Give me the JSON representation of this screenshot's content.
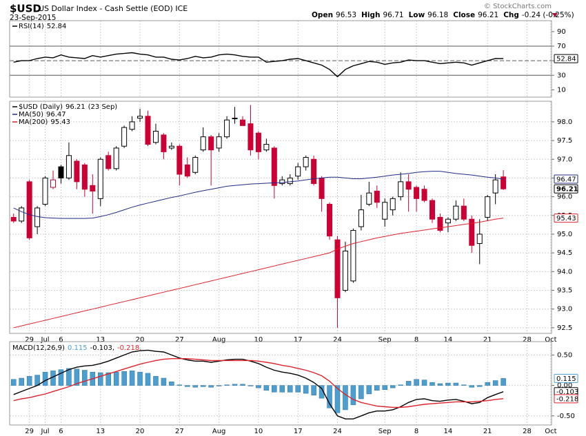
{
  "header": {
    "symbol": "$USD",
    "name": "US Dollar Index - Cash Settle (EOD) ICE",
    "date": "23-Sep-2015",
    "credit": "© StockCharts.com",
    "quote": [
      {
        "label": "Open",
        "value": 96.53
      },
      {
        "label": "High",
        "value": 96.71
      },
      {
        "label": "Low",
        "value": 96.18
      },
      {
        "label": "Close",
        "value": 96.21
      },
      {
        "label": "Chg",
        "value": "-0.24 (-0.25%)"
      }
    ]
  },
  "chart_data": [
    {
      "type": "line",
      "xlim": [
        -0.5,
        68.1
      ],
      "ylim": [
        0,
        105
      ],
      "yticks": [
        10,
        30,
        50,
        70,
        90
      ],
      "levels": [
        30,
        70
      ],
      "midline": 50,
      "grid": false,
      "series": [
        {
          "name": "RSI(14)",
          "color": "#000000",
          "values": [
            48,
            50,
            50,
            53,
            55,
            54,
            58,
            55,
            54,
            53,
            57,
            55,
            57,
            59,
            60,
            61,
            59,
            58,
            55,
            55,
            52,
            51,
            53,
            56,
            54,
            55,
            58,
            59,
            58,
            56,
            55,
            55,
            48,
            49,
            50,
            52,
            53,
            50,
            47,
            44,
            38,
            28,
            38,
            43,
            46,
            49,
            48,
            45,
            47,
            48,
            51,
            50,
            50,
            48,
            46,
            47,
            48,
            47,
            44,
            47,
            50,
            53,
            52.84
          ]
        }
      ]
    },
    {
      "type": "candlestick",
      "xlim": [
        -0.5,
        68.1
      ],
      "ylim": [
        92.35,
        98.55
      ],
      "grid": true,
      "date_label": "(23 Sep)",
      "yticks": [
        92.5,
        {
          "value": 93,
          "label": "93.0"
        },
        93.5,
        {
          "value": 94,
          "label": "94.0"
        },
        94.5,
        {
          "value": 95,
          "label": "95.0"
        },
        95.5,
        {
          "value": 96,
          "label": "96.0"
        },
        96.5,
        {
          "value": 97,
          "label": "97.0"
        },
        97.5,
        {
          "value": 98,
          "label": "98.0"
        }
      ],
      "xticks": [
        {
          "value": 2,
          "label": "29"
        },
        {
          "value": 4,
          "label": "Jul"
        },
        {
          "value": 6,
          "label": "6"
        },
        {
          "value": 11,
          "label": "13"
        },
        {
          "value": 16,
          "label": "20"
        },
        {
          "value": 21,
          "label": "27"
        },
        {
          "value": 26,
          "label": "Aug"
        },
        {
          "value": 31,
          "label": "10"
        },
        {
          "value": 36,
          "label": "17"
        },
        {
          "value": 41,
          "label": "24"
        },
        {
          "value": 47,
          "label": "Sep"
        },
        {
          "value": 51,
          "label": "8"
        },
        {
          "value": 55,
          "label": "14"
        },
        {
          "value": 60,
          "label": "21"
        },
        {
          "value": 65,
          "label": "28"
        },
        {
          "value": 68,
          "label": "Oct"
        }
      ],
      "series": [
        {
          "name": "$USD (Daily)",
          "type": "candlestick",
          "color": "#000000",
          "down_color": "#cc0033",
          "open": [
            95.45,
            95.35,
            96.4,
            95.2,
            95.8,
            96.25,
            96.8,
            96.5,
            96.95,
            96.85,
            96.3,
            95.95,
            97.1,
            96.75,
            97.35,
            97.8,
            98.1,
            98.15,
            97.45,
            97.65,
            97.3,
            97.35,
            96.85,
            96.65,
            97.25,
            97.6,
            97.3,
            97.6,
            98.1,
            98.05,
            97.95,
            97.7,
            97.25,
            97.3,
            96.35,
            96.35,
            96.55,
            96.8,
            97.0,
            96.5,
            95.8,
            94.85,
            93.5,
            93.75,
            95.2,
            95.8,
            96.15,
            95.4,
            95.65,
            96.0,
            96.4,
            96.25,
            96.2,
            95.9,
            95.45,
            95.3,
            95.4,
            95.75,
            95.4,
            94.75,
            95.45,
            96.1,
            96.53
          ],
          "high": [
            95.55,
            95.75,
            96.45,
            95.75,
            96.55,
            96.7,
            96.85,
            97.45,
            97.0,
            96.9,
            96.6,
            97.05,
            97.2,
            97.35,
            97.9,
            98.15,
            98.35,
            98.3,
            97.95,
            97.7,
            97.45,
            97.4,
            97.05,
            97.1,
            97.85,
            97.65,
            97.7,
            98.15,
            98.4,
            98.15,
            98.45,
            97.75,
            97.55,
            97.35,
            96.55,
            96.6,
            96.9,
            97.1,
            97.1,
            96.55,
            95.85,
            94.95,
            94.8,
            95.15,
            96.05,
            96.4,
            96.3,
            95.95,
            96.0,
            96.65,
            96.6,
            96.3,
            96.3,
            95.95,
            95.55,
            95.45,
            95.9,
            95.95,
            95.5,
            95.4,
            96.05,
            96.6,
            96.71
          ],
          "low": [
            95.3,
            95.3,
            94.85,
            95.0,
            95.75,
            96.2,
            96.35,
            96.45,
            96.2,
            96.0,
            95.55,
            95.75,
            96.7,
            96.7,
            97.3,
            97.75,
            98.0,
            97.35,
            97.4,
            97.0,
            97.25,
            96.3,
            96.5,
            96.6,
            97.2,
            96.3,
            97.2,
            97.55,
            97.95,
            97.9,
            97.1,
            97.0,
            97.2,
            95.95,
            96.3,
            96.3,
            96.45,
            96.7,
            96.3,
            95.6,
            94.85,
            92.5,
            93.45,
            93.7,
            95.1,
            95.75,
            95.7,
            95.2,
            95.5,
            95.9,
            95.6,
            95.6,
            95.85,
            95.3,
            95.05,
            95.05,
            95.35,
            95.35,
            94.5,
            94.2,
            95.35,
            95.8,
            96.18
          ],
          "close": [
            95.35,
            95.7,
            94.9,
            95.7,
            96.5,
            96.45,
            96.5,
            97.1,
            96.4,
            96.2,
            96.15,
            97.0,
            96.75,
            97.3,
            97.85,
            98.0,
            98.15,
            97.4,
            97.75,
            97.2,
            97.35,
            96.6,
            96.55,
            97.05,
            97.6,
            97.25,
            97.6,
            98.05,
            98.08,
            97.9,
            97.25,
            97.2,
            97.4,
            96.3,
            96.45,
            96.5,
            96.8,
            97.05,
            96.35,
            95.95,
            94.95,
            93.3,
            94.55,
            95.1,
            95.65,
            96.1,
            95.85,
            95.85,
            95.95,
            96.4,
            96.2,
            95.95,
            95.9,
            95.4,
            95.1,
            95.4,
            95.75,
            95.4,
            94.7,
            95.0,
            96.0,
            96.45,
            96.21
          ]
        },
        {
          "name": "MA(50)",
          "color": "#1f2a86",
          "values": [
            95.7,
            95.6,
            95.52,
            95.47,
            95.44,
            95.43,
            95.42,
            95.42,
            95.42,
            95.42,
            95.43,
            95.47,
            95.52,
            95.58,
            95.65,
            95.72,
            95.78,
            95.83,
            95.88,
            95.93,
            95.98,
            96.02,
            96.07,
            96.12,
            96.16,
            96.2,
            96.24,
            96.28,
            96.3,
            96.32,
            96.34,
            96.35,
            96.36,
            96.37,
            96.38,
            96.4,
            96.42,
            96.45,
            96.48,
            96.5,
            96.52,
            96.52,
            96.5,
            96.48,
            96.48,
            96.5,
            96.52,
            96.55,
            96.58,
            96.6,
            96.62,
            96.65,
            96.67,
            96.68,
            96.68,
            96.65,
            96.62,
            96.6,
            96.58,
            96.55,
            96.52,
            96.5,
            96.47
          ]
        },
        {
          "name": "MA(200)",
          "color": "#e0202a",
          "values": [
            92.5,
            92.55,
            92.6,
            92.65,
            92.7,
            92.75,
            92.8,
            92.85,
            92.9,
            92.95,
            93.0,
            93.05,
            93.1,
            93.15,
            93.2,
            93.25,
            93.3,
            93.35,
            93.4,
            93.45,
            93.5,
            93.55,
            93.6,
            93.65,
            93.7,
            93.75,
            93.8,
            93.85,
            93.9,
            93.95,
            94.0,
            94.05,
            94.1,
            94.15,
            94.2,
            94.25,
            94.3,
            94.35,
            94.4,
            94.45,
            94.5,
            94.6,
            94.68,
            94.75,
            94.8,
            94.85,
            94.9,
            94.94,
            94.98,
            95.02,
            95.05,
            95.08,
            95.11,
            95.14,
            95.17,
            95.2,
            95.23,
            95.26,
            95.29,
            95.32,
            95.36,
            95.4,
            95.43
          ]
        }
      ]
    },
    {
      "type": "line",
      "title": "MACD(12,26,9)",
      "xlim": [
        -0.5,
        68.1
      ],
      "ylim": [
        -0.65,
        0.72
      ],
      "grid": true,
      "yticks": [
        {
          "value": 0.5,
          "label": "0.50"
        },
        {
          "value": 0,
          "label": "0.00"
        },
        {
          "value": -0.5,
          "label": "-0.50"
        }
      ],
      "xticks": [
        {
          "value": 2,
          "label": "29"
        },
        {
          "value": 4,
          "label": "Jul"
        },
        {
          "value": 6,
          "label": "6"
        },
        {
          "value": 11,
          "label": "13"
        },
        {
          "value": 16,
          "label": "20"
        },
        {
          "value": 21,
          "label": "27"
        },
        {
          "value": 26,
          "label": "Aug"
        },
        {
          "value": 31,
          "label": "10"
        },
        {
          "value": 36,
          "label": "17"
        },
        {
          "value": 41,
          "label": "24"
        },
        {
          "value": 47,
          "label": "Sep"
        },
        {
          "value": 51,
          "label": "8"
        },
        {
          "value": 55,
          "label": "14"
        },
        {
          "value": 60,
          "label": "21"
        },
        {
          "value": 65,
          "label": "28"
        },
        {
          "value": 68,
          "label": "Oct"
        }
      ],
      "series": [
        {
          "type": "bar",
          "color": "#4b9fd0",
          "values": [
            0.1,
            0.12,
            0.15,
            0.17,
            0.22,
            0.24,
            0.26,
            0.28,
            0.27,
            0.25,
            0.22,
            0.21,
            0.21,
            0.22,
            0.23,
            0.24,
            0.22,
            0.2,
            0.15,
            0.12,
            0.06,
            0.01,
            -0.02,
            -0.03,
            -0.02,
            -0.03,
            -0.01,
            0.01,
            0.02,
            0.02,
            -0.01,
            -0.04,
            -0.08,
            -0.11,
            -0.11,
            -0.11,
            -0.11,
            -0.13,
            -0.16,
            -0.21,
            -0.37,
            -0.45,
            -0.4,
            -0.32,
            -0.22,
            -0.14,
            -0.08,
            -0.07,
            -0.04,
            0.01,
            0.07,
            0.1,
            0.09,
            0.05,
            0.03,
            0.04,
            0.04,
            0.01,
            -0.03,
            -0.02,
            0.05,
            0.08,
            0.115
          ]
        },
        {
          "legend_label": "-0.103,",
          "color": "#000000",
          "values": [
            -0.15,
            -0.1,
            -0.05,
            0.0,
            0.08,
            0.14,
            0.2,
            0.26,
            0.3,
            0.32,
            0.33,
            0.36,
            0.4,
            0.45,
            0.5,
            0.55,
            0.57,
            0.58,
            0.56,
            0.55,
            0.5,
            0.45,
            0.42,
            0.4,
            0.4,
            0.38,
            0.4,
            0.42,
            0.43,
            0.43,
            0.4,
            0.36,
            0.3,
            0.25,
            0.22,
            0.2,
            0.17,
            0.12,
            0.05,
            -0.05,
            -0.3,
            -0.5,
            -0.55,
            -0.55,
            -0.5,
            -0.45,
            -0.42,
            -0.42,
            -0.4,
            -0.35,
            -0.28,
            -0.23,
            -0.22,
            -0.25,
            -0.26,
            -0.24,
            -0.23,
            -0.26,
            -0.3,
            -0.28,
            -0.2,
            -0.15,
            -0.103
          ]
        },
        {
          "legend_label": "-0.218,",
          "color": "#e0202a",
          "values": [
            -0.25,
            -0.22,
            -0.2,
            -0.17,
            -0.14,
            -0.1,
            -0.06,
            -0.02,
            0.03,
            0.07,
            0.11,
            0.15,
            0.19,
            0.23,
            0.27,
            0.31,
            0.35,
            0.38,
            0.41,
            0.43,
            0.44,
            0.44,
            0.44,
            0.43,
            0.42,
            0.41,
            0.41,
            0.41,
            0.41,
            0.41,
            0.41,
            0.4,
            0.38,
            0.36,
            0.33,
            0.31,
            0.28,
            0.25,
            0.21,
            0.16,
            0.07,
            -0.05,
            -0.15,
            -0.23,
            -0.28,
            -0.31,
            -0.34,
            -0.35,
            -0.36,
            -0.36,
            -0.35,
            -0.33,
            -0.31,
            -0.3,
            -0.29,
            -0.28,
            -0.27,
            -0.27,
            -0.27,
            -0.26,
            -0.25,
            -0.23,
            -0.218
          ]
        }
      ]
    }
  ]
}
